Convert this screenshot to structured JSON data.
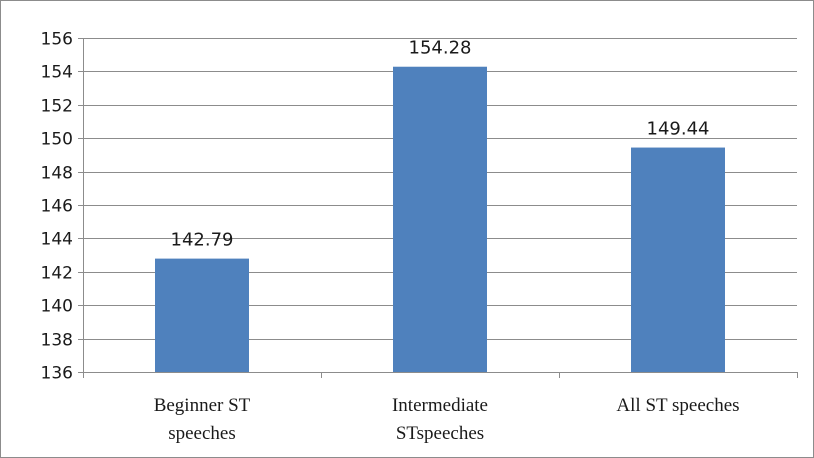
{
  "chart_data": {
    "type": "bar",
    "categories": [
      [
        "Beginner ST",
        "speeches"
      ],
      [
        "Intermediate",
        "STspeeches"
      ],
      [
        "All ST speeches"
      ]
    ],
    "values": [
      142.79,
      154.28,
      149.44
    ],
    "data_labels": [
      "142.79",
      "154.28",
      "149.44"
    ],
    "ylim": [
      136,
      156
    ],
    "ytick_step": 2,
    "ytick_labels": [
      "136",
      "138",
      "140",
      "142",
      "144",
      "146",
      "148",
      "150",
      "152",
      "154",
      "156"
    ],
    "grid": true,
    "legend": "none",
    "title": "",
    "xlabel": "",
    "ylabel": "",
    "colors": {
      "bar": "#4f81bd",
      "grid": "#8c8c8c",
      "axis": "#8c8c8c"
    }
  }
}
